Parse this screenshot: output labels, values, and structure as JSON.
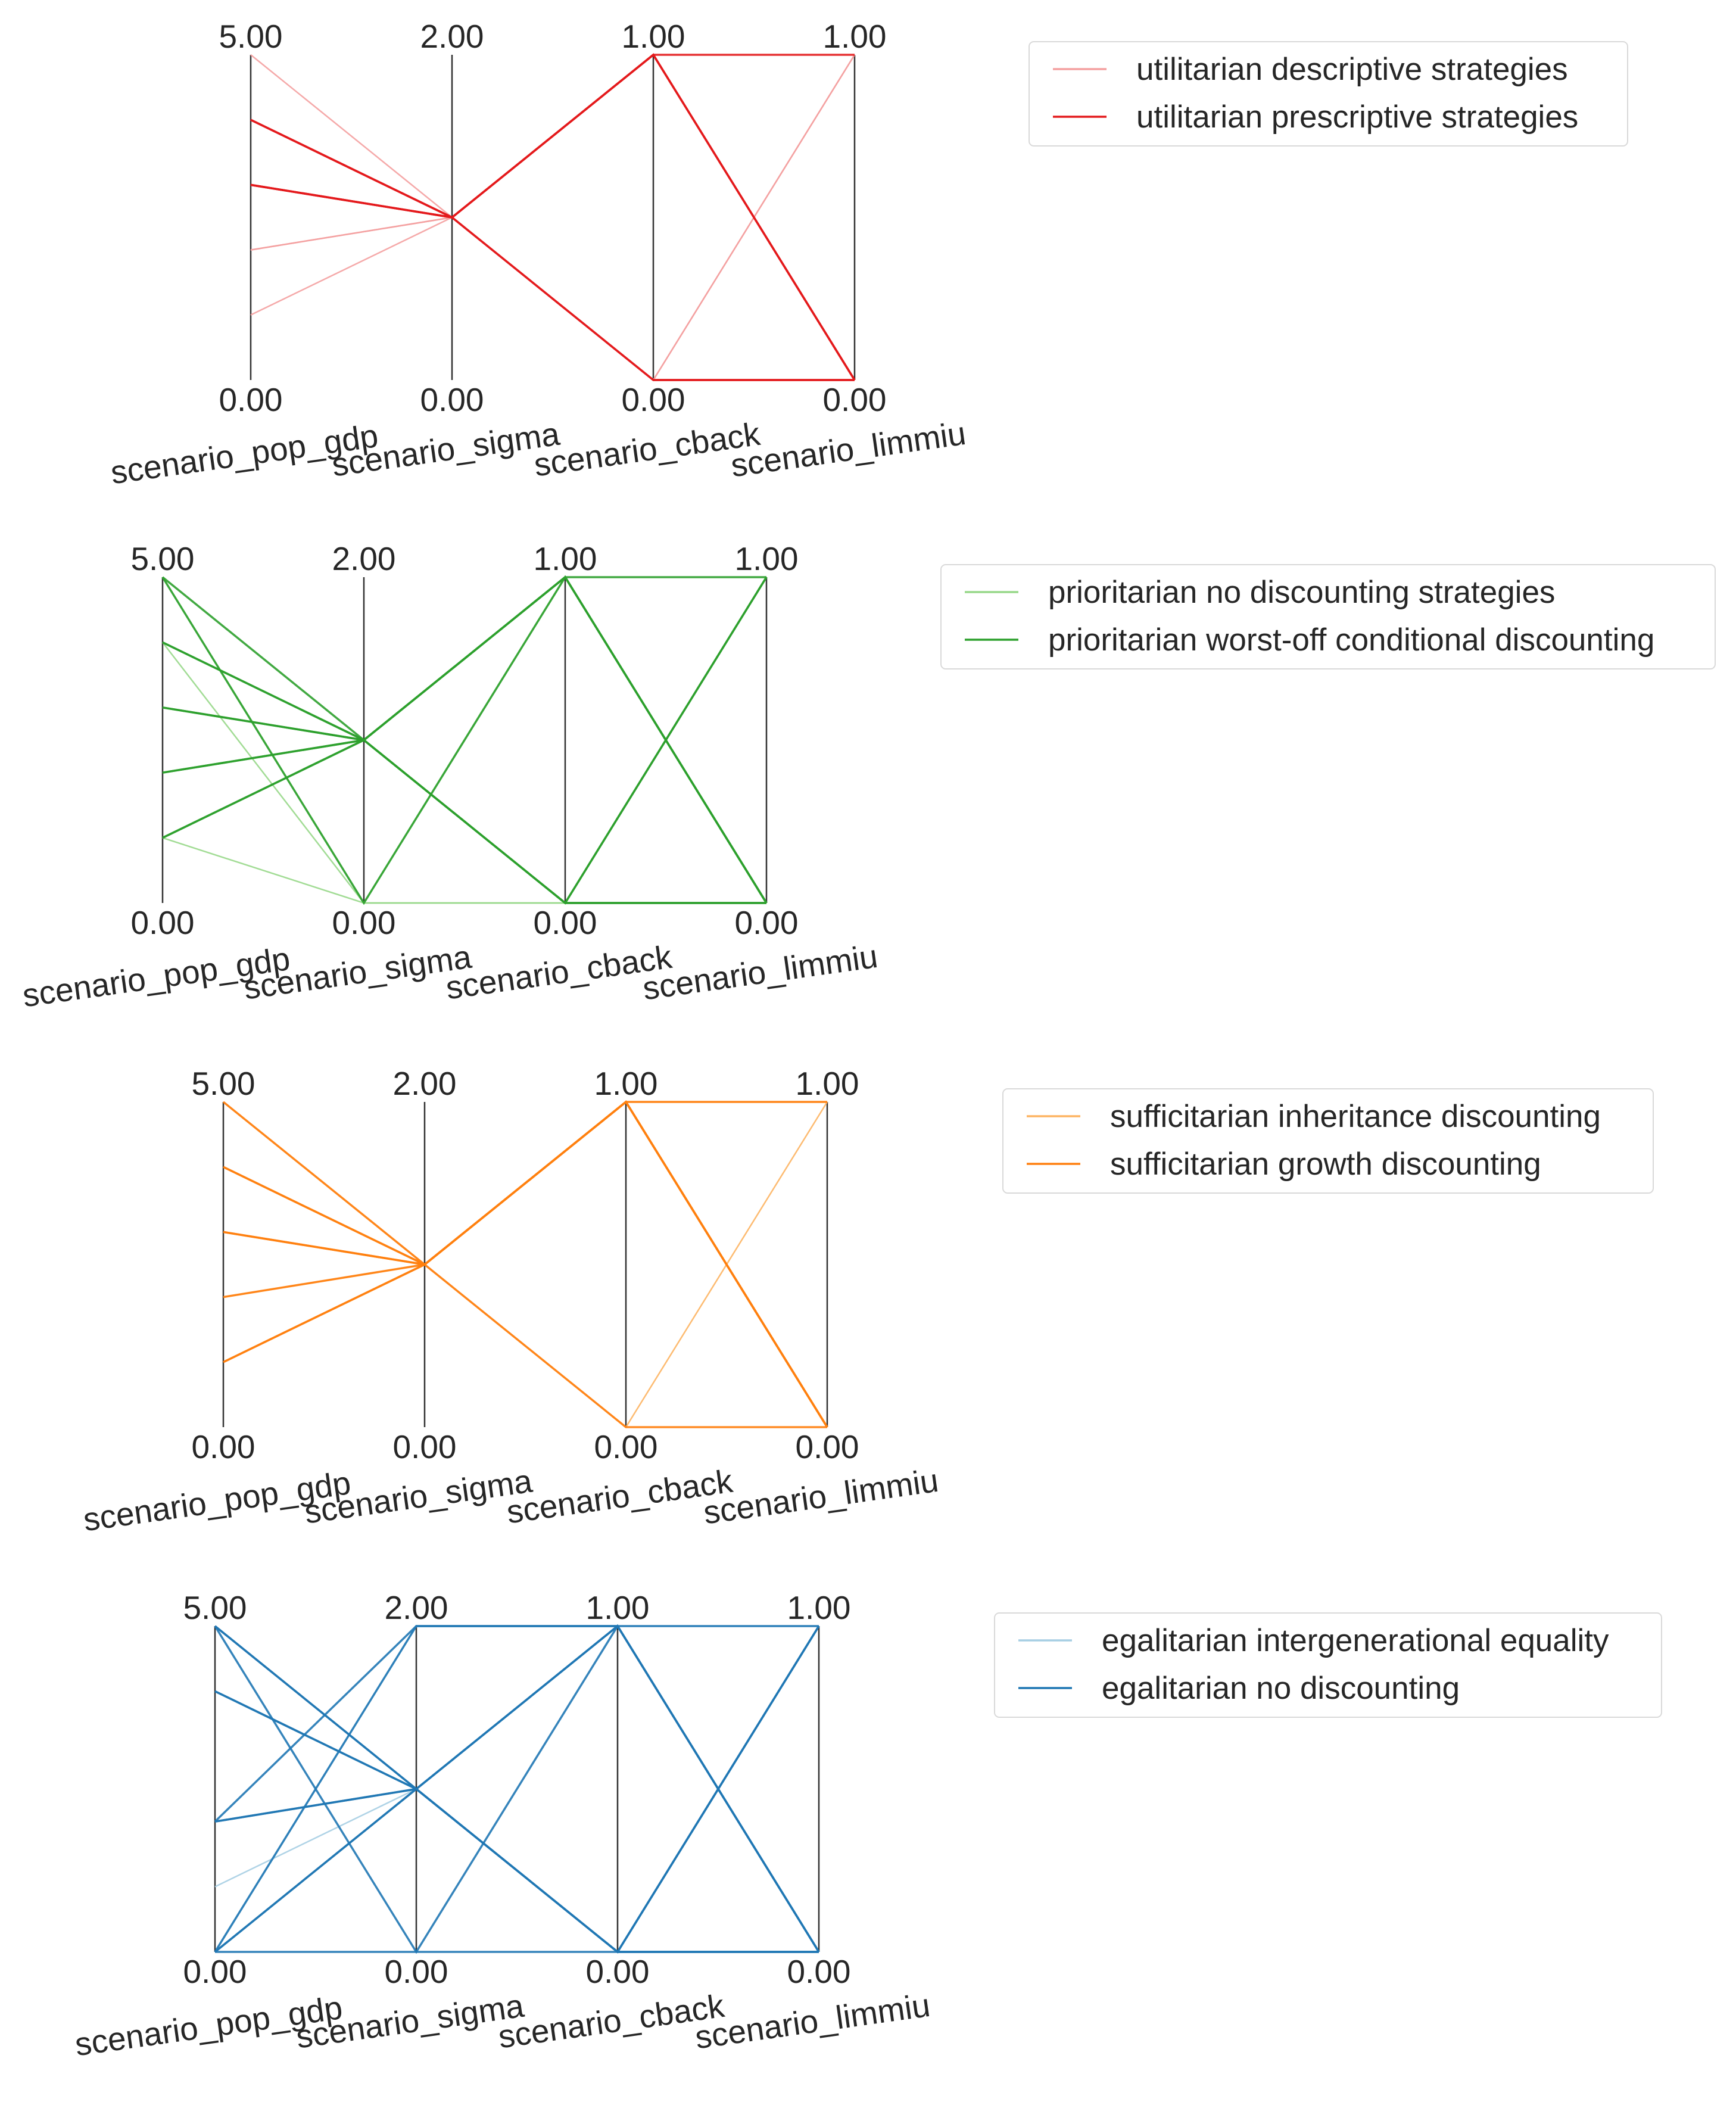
{
  "chart_data": [
    {
      "type": "parallel_coordinates",
      "axes": [
        {
          "label": "scenario_pop_gdp",
          "top": "5.00",
          "bottom": "0.00",
          "range": [
            0,
            5
          ]
        },
        {
          "label": "scenario_sigma",
          "top": "2.00",
          "bottom": "0.00",
          "range": [
            0,
            2
          ]
        },
        {
          "label": "scenario_cback",
          "top": "1.00",
          "bottom": "0.00",
          "range": [
            0,
            1
          ]
        },
        {
          "label": "scenario_limmiu",
          "top": "1.00",
          "bottom": "0.00",
          "range": [
            0,
            1
          ]
        }
      ],
      "legend": [
        {
          "name": "utilitarian descriptive strategies",
          "color": "#f4a0a0"
        },
        {
          "name": "utilitarian prescriptive strategies",
          "color": "#e31a1c"
        }
      ],
      "series": [
        {
          "name": "utilitarian descriptive strategies",
          "color": "#f4a0a0",
          "lines": [
            [
              5,
              1,
              1,
              0
            ],
            [
              2,
              1,
              0,
              1
            ],
            [
              1,
              1,
              1,
              0
            ],
            [
              2,
              1,
              0,
              1
            ]
          ]
        },
        {
          "name": "utilitarian prescriptive strategies",
          "color": "#e31a1c",
          "lines": [
            [
              4,
              1,
              1,
              0
            ],
            [
              3,
              1,
              0,
              0
            ],
            [
              4,
              1,
              1,
              0
            ],
            [
              3,
              1,
              1,
              0
            ],
            [
              3,
              1,
              1,
              1
            ],
            [
              4,
              1,
              0,
              0
            ]
          ]
        }
      ]
    },
    {
      "type": "parallel_coordinates",
      "axes": [
        {
          "label": "scenario_pop_gdp",
          "top": "5.00",
          "bottom": "0.00",
          "range": [
            0,
            5
          ]
        },
        {
          "label": "scenario_sigma",
          "top": "2.00",
          "bottom": "0.00",
          "range": [
            0,
            2
          ]
        },
        {
          "label": "scenario_cback",
          "top": "1.00",
          "bottom": "0.00",
          "range": [
            0,
            1
          ]
        },
        {
          "label": "scenario_limmiu",
          "top": "1.00",
          "bottom": "0.00",
          "range": [
            0,
            1
          ]
        }
      ],
      "legend": [
        {
          "name": "prioritarian no discounting strategies",
          "color": "#98d88a"
        },
        {
          "name": "prioritarian worst-off conditional discounting",
          "color": "#2ca02c"
        }
      ],
      "series": [
        {
          "name": "prioritarian no discounting strategies",
          "color": "#98d88a",
          "lines": [
            [
              5,
              0,
              0,
              1
            ],
            [
              4,
              0,
              1,
              0
            ],
            [
              3,
              1,
              0,
              1
            ],
            [
              1,
              0,
              0,
              0
            ]
          ]
        },
        {
          "name": "prioritarian worst-off conditional discounting",
          "color": "#2ca02c",
          "lines": [
            [
              5,
              1,
              1,
              0
            ],
            [
              4,
              1,
              0,
              0
            ],
            [
              3,
              1,
              1,
              0
            ],
            [
              2,
              1,
              0,
              1
            ],
            [
              1,
              1,
              1,
              0
            ],
            [
              5,
              0,
              1,
              0
            ],
            [
              4,
              1,
              1,
              1
            ],
            [
              2,
              1,
              0,
              0
            ],
            [
              3,
              1,
              0,
              1
            ],
            [
              1,
              1,
              1,
              0
            ]
          ]
        }
      ]
    },
    {
      "type": "parallel_coordinates",
      "axes": [
        {
          "label": "scenario_pop_gdp",
          "top": "5.00",
          "bottom": "0.00",
          "range": [
            0,
            5
          ]
        },
        {
          "label": "scenario_sigma",
          "top": "2.00",
          "bottom": "0.00",
          "range": [
            0,
            2
          ]
        },
        {
          "label": "scenario_cback",
          "top": "1.00",
          "bottom": "0.00",
          "range": [
            0,
            1
          ]
        },
        {
          "label": "scenario_limmiu",
          "top": "1.00",
          "bottom": "0.00",
          "range": [
            0,
            1
          ]
        }
      ],
      "legend": [
        {
          "name": "sufficitarian inheritance discounting",
          "color": "#fdb462"
        },
        {
          "name": "sufficitarian growth discounting",
          "color": "#ff7f0e"
        }
      ],
      "series": [
        {
          "name": "sufficitarian inheritance discounting",
          "color": "#fdb462",
          "lines": [
            [
              5,
              1,
              0,
              1
            ],
            [
              3,
              1,
              1,
              0
            ],
            [
              2,
              1,
              1,
              1
            ]
          ]
        },
        {
          "name": "sufficitarian growth discounting",
          "color": "#ff7f0e",
          "lines": [
            [
              5,
              1,
              1,
              0
            ],
            [
              4,
              1,
              1,
              0
            ],
            [
              3,
              1,
              1,
              0
            ],
            [
              2,
              1,
              1,
              0
            ],
            [
              1,
              1,
              1,
              0
            ],
            [
              4,
              1,
              0,
              0
            ],
            [
              3,
              1,
              1,
              1
            ],
            [
              1,
              1,
              1,
              0
            ]
          ]
        }
      ]
    },
    {
      "type": "parallel_coordinates",
      "axes": [
        {
          "label": "scenario_pop_gdp",
          "top": "5.00",
          "bottom": "0.00",
          "range": [
            0,
            5
          ]
        },
        {
          "label": "scenario_sigma",
          "top": "2.00",
          "bottom": "0.00",
          "range": [
            0,
            2
          ]
        },
        {
          "label": "scenario_cback",
          "top": "1.00",
          "bottom": "0.00",
          "range": [
            0,
            1
          ]
        },
        {
          "label": "scenario_limmiu",
          "top": "1.00",
          "bottom": "0.00",
          "range": [
            0,
            1
          ]
        }
      ],
      "legend": [
        {
          "name": "egalitarian intergenerational equality",
          "color": "#a6cee3"
        },
        {
          "name": "egalitarian no discounting",
          "color": "#1f77b4"
        }
      ],
      "series": [
        {
          "name": "egalitarian intergenerational equality",
          "color": "#a6cee3",
          "lines": [
            [
              1,
              1,
              1,
              0
            ],
            [
              0,
              2,
              1,
              1
            ]
          ]
        },
        {
          "name": "egalitarian no discounting",
          "color": "#1f77b4",
          "lines": [
            [
              5,
              0,
              1,
              0
            ],
            [
              5,
              1,
              0,
              1
            ],
            [
              4,
              1,
              1,
              0
            ],
            [
              2,
              1,
              0,
              0
            ],
            [
              0,
              2,
              1,
              0
            ],
            [
              0,
              1,
              0,
              1
            ],
            [
              0,
              0,
              0,
              0
            ],
            [
              5,
              1,
              1,
              1
            ],
            [
              2,
              1,
              1,
              0
            ],
            [
              0,
              1,
              0,
              0
            ],
            [
              4,
              1,
              0,
              1
            ],
            [
              2,
              2,
              1,
              0
            ]
          ]
        }
      ]
    }
  ]
}
